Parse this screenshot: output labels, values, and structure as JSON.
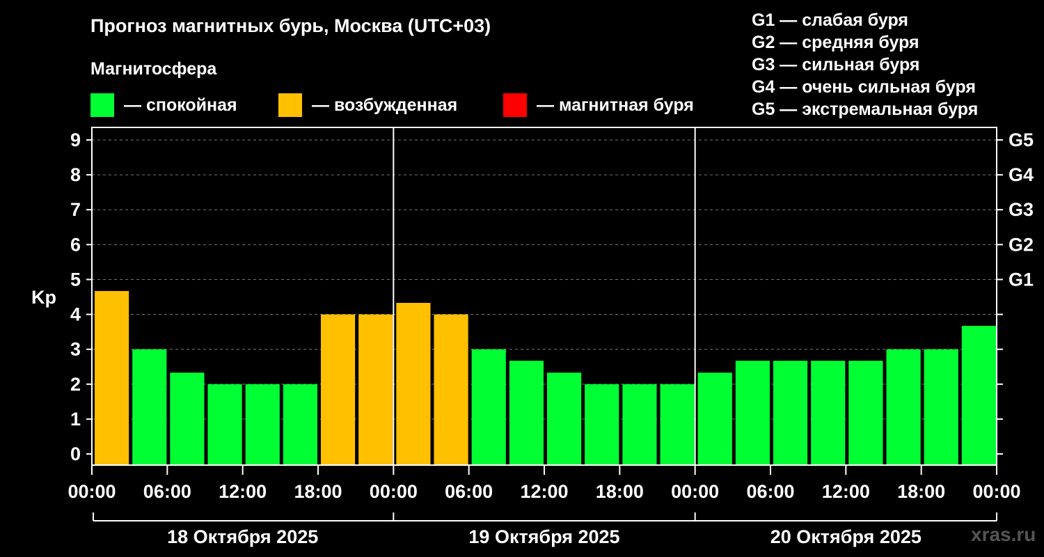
{
  "title": "Прогноз магнитных бурь, Москва (UTC+03)",
  "subtitle": "Магнитосфера",
  "legend": [
    {
      "label": "— спокойная",
      "color": "#00ff33"
    },
    {
      "label": "— возбужденная",
      "color": "#ffc000"
    },
    {
      "label": "— магнитная буря",
      "color": "#ff0000"
    }
  ],
  "g_legend": [
    "G1 — слабая буря",
    "G2 — средняя буря",
    "G3 — сильная буря",
    "G4 — очень сильная буря",
    "G5 — экстремальная буря"
  ],
  "watermark": "xras.ru",
  "chart_data": {
    "type": "bar",
    "ylabel": "Kp",
    "ylim": [
      0,
      9
    ],
    "yticks": [
      "0",
      "1",
      "2",
      "3",
      "4",
      "5",
      "6",
      "7",
      "8",
      "9"
    ],
    "g_ticks": [
      {
        "kp": 5,
        "label": "G1"
      },
      {
        "kp": 6,
        "label": "G2"
      },
      {
        "kp": 7,
        "label": "G3"
      },
      {
        "kp": 8,
        "label": "G4"
      },
      {
        "kp": 9,
        "label": "G5"
      }
    ],
    "grid": "dashed horizontal",
    "x_tick_labels": [
      "00:00",
      "06:00",
      "12:00",
      "18:00",
      "00:00",
      "06:00",
      "12:00",
      "18:00",
      "00:00",
      "06:00",
      "12:00",
      "18:00",
      "00:00"
    ],
    "days": [
      "18 Октября 2025",
      "19 Октября 2025",
      "20 Октября 2025"
    ],
    "colors": {
      "quiet": "#00ff33",
      "excited": "#ffc000",
      "storm": "#ff0000"
    },
    "values": [
      4.67,
      3.0,
      2.33,
      2.0,
      2.0,
      2.0,
      4.0,
      4.0,
      4.33,
      4.0,
      3.0,
      2.67,
      2.33,
      2.0,
      2.0,
      2.0,
      2.33,
      2.67,
      2.67,
      2.67,
      2.67,
      3.0,
      3.0,
      3.67
    ],
    "status": [
      "excited",
      "quiet",
      "quiet",
      "quiet",
      "quiet",
      "quiet",
      "excited",
      "excited",
      "excited",
      "excited",
      "quiet",
      "quiet",
      "quiet",
      "quiet",
      "quiet",
      "quiet",
      "quiet",
      "quiet",
      "quiet",
      "quiet",
      "quiet",
      "quiet",
      "quiet",
      "quiet"
    ]
  }
}
